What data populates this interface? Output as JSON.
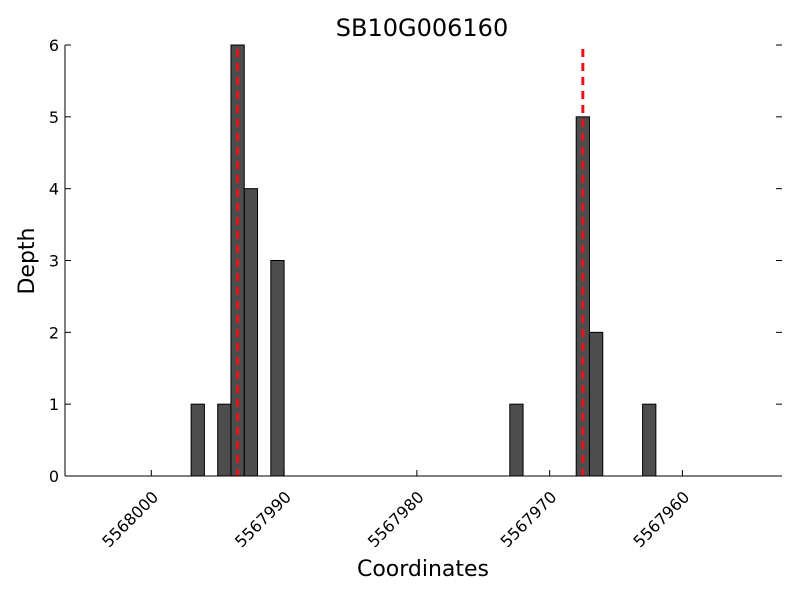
{
  "chart_data": {
    "type": "bar",
    "title": "SB10G006160",
    "xlabel": "Coordinates",
    "ylabel": "Depth",
    "x_axis_reversed": true,
    "xlim": [
      5568006.5,
      5567952.5
    ],
    "ylim": [
      0,
      6
    ],
    "bar_width": 1,
    "xticks": [
      5568000,
      5567990,
      5567980,
      5567970,
      5567960
    ],
    "yticks": [
      0,
      1,
      2,
      3,
      4,
      5,
      6
    ],
    "bars": [
      {
        "x": 5567996.5,
        "y": 1
      },
      {
        "x": 5567994.5,
        "y": 1
      },
      {
        "x": 5567993.5,
        "y": 6
      },
      {
        "x": 5567992.5,
        "y": 4
      },
      {
        "x": 5567990.5,
        "y": 3
      },
      {
        "x": 5567972.5,
        "y": 1
      },
      {
        "x": 5567967.5,
        "y": 5
      },
      {
        "x": 5567966.5,
        "y": 2
      },
      {
        "x": 5567962.5,
        "y": 1
      }
    ],
    "markers": [
      {
        "x": 5567993.5,
        "y_max": 6,
        "color": "#e8121a",
        "style": "dashed"
      },
      {
        "x": 5567967.5,
        "y_max": 6,
        "color": "#e8121a",
        "style": "dashed"
      }
    ],
    "grid": false,
    "bar_color": "#4d4d4d",
    "legend": "none"
  }
}
